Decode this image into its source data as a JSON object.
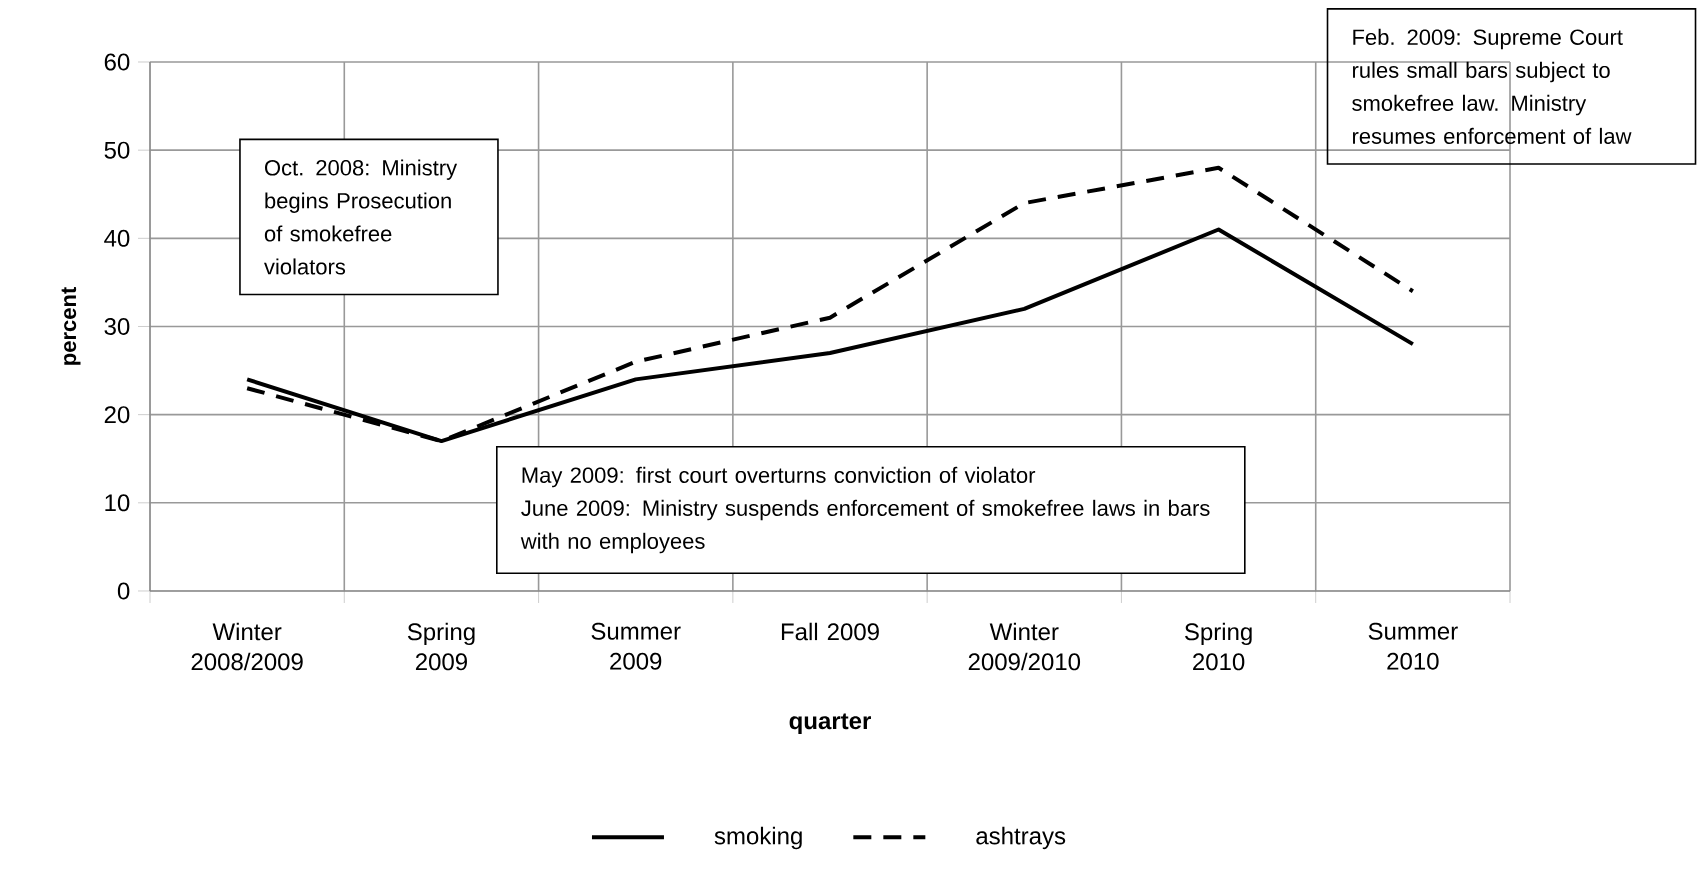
{
  "chart_data": {
    "type": "line",
    "xlabel": "quarter",
    "ylabel": "percent",
    "categories": [
      "Winter 2008/2009",
      "Spring 2009",
      "Summer 2009",
      "Fall 2009",
      "Winter 2009/2010",
      "Spring 2010",
      "Summer 2010"
    ],
    "series": [
      {
        "name": "smoking",
        "color": "#000000",
        "line_style": "solid",
        "values": [
          24,
          17,
          24,
          27,
          32,
          41,
          28
        ]
      },
      {
        "name": "ashtrays",
        "color": "#000000",
        "line_style": "dashed",
        "values": [
          23,
          17,
          26,
          31,
          44,
          48,
          34
        ]
      }
    ],
    "ylim": [
      0,
      60
    ],
    "yticks": [
      0,
      10,
      20,
      30,
      40,
      50,
      60
    ],
    "grid": true,
    "legend": "bottom",
    "annotations": [
      "Oct. 2008: Ministry begins Prosecution of smokefree violators",
      "May 2009:  first court overturns conviction of violator",
      "June 2009:  Ministry suspends enforcement of smokefree laws in bars with no employees",
      "Feb. 2009:  Supreme Court rules small bars subject to smokefree law. Ministry resumes enforcement of law"
    ]
  }
}
